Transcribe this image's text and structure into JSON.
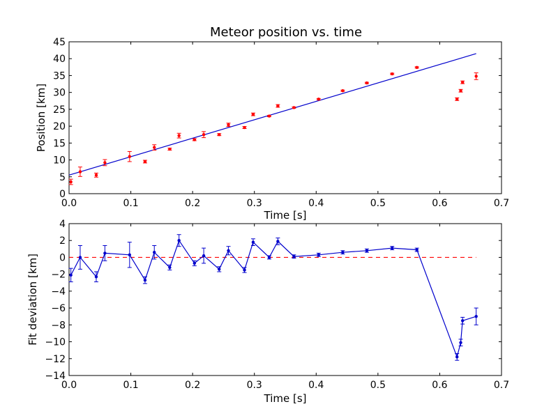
{
  "chart_data": [
    {
      "type": "scatter",
      "title": "Meteor position vs. time",
      "xlabel": "Time [s]",
      "ylabel": "Position [km]",
      "xlim": [
        0.0,
        0.7
      ],
      "ylim": [
        0,
        45
      ],
      "x_ticks": [
        0.0,
        0.1,
        0.2,
        0.3,
        0.4,
        0.5,
        0.6,
        0.7
      ],
      "y_ticks": [
        0,
        5,
        10,
        15,
        20,
        25,
        30,
        35,
        40,
        45
      ],
      "x_tick_labels": [
        "0.0",
        "0.1",
        "0.2",
        "0.3",
        "0.4",
        "0.5",
        "0.6",
        "0.7"
      ],
      "y_tick_labels": [
        "0",
        "5",
        "10",
        "15",
        "20",
        "25",
        "30",
        "35",
        "40",
        "45"
      ],
      "grid": false,
      "colors": {
        "points": "#ff0000",
        "fit": "#0000cc"
      },
      "series": [
        {
          "kind": "points-with-error-bars",
          "x": [
            0.003,
            0.018,
            0.044,
            0.058,
            0.098,
            0.123,
            0.138,
            0.163,
            0.178,
            0.203,
            0.218,
            0.243,
            0.258,
            0.284,
            0.298,
            0.324,
            0.338,
            0.364,
            0.404,
            0.443,
            0.482,
            0.523,
            0.563,
            0.628,
            0.634,
            0.637,
            0.659
          ],
          "y": [
            3.5,
            6.5,
            5.5,
            9.2,
            11.0,
            9.5,
            13.7,
            13.2,
            17.2,
            16.0,
            17.5,
            17.5,
            20.4,
            19.6,
            23.5,
            23.0,
            26.0,
            25.5,
            28.0,
            30.5,
            32.8,
            35.5,
            37.4,
            28.0,
            30.5,
            33.0,
            34.8
          ],
          "err": [
            0.8,
            1.4,
            0.6,
            0.9,
            1.5,
            0.4,
            0.8,
            0.3,
            0.7,
            0.3,
            0.9,
            0.3,
            0.5,
            0.3,
            0.4,
            0.2,
            0.4,
            0.2,
            0.2,
            0.2,
            0.2,
            0.2,
            0.2,
            0.4,
            0.4,
            0.4,
            1.0
          ]
        },
        {
          "kind": "fit-line",
          "x": [
            0.0,
            0.659
          ],
          "y": [
            5.5,
            41.5
          ]
        }
      ]
    },
    {
      "type": "line",
      "title": "",
      "xlabel": "Time [s]",
      "ylabel": "Fit deviation [km]",
      "xlim": [
        0.0,
        0.7
      ],
      "ylim": [
        -14,
        4
      ],
      "x_ticks": [
        0.0,
        0.1,
        0.2,
        0.3,
        0.4,
        0.5,
        0.6,
        0.7
      ],
      "y_ticks": [
        -14,
        -12,
        -10,
        -8,
        -6,
        -4,
        -2,
        0,
        2,
        4
      ],
      "x_tick_labels": [
        "0.0",
        "0.1",
        "0.2",
        "0.3",
        "0.4",
        "0.5",
        "0.6",
        "0.7"
      ],
      "y_tick_labels": [
        "−14",
        "−12",
        "−10",
        "−8",
        "−6",
        "−4",
        "−2",
        "0",
        "2",
        "4"
      ],
      "grid": false,
      "colors": {
        "line": "#0000cc",
        "zero": "#ff0000"
      },
      "series": [
        {
          "kind": "line-with-error-bars",
          "x": [
            0.003,
            0.018,
            0.044,
            0.058,
            0.098,
            0.123,
            0.138,
            0.163,
            0.178,
            0.203,
            0.218,
            0.243,
            0.258,
            0.284,
            0.298,
            0.324,
            0.338,
            0.364,
            0.404,
            0.443,
            0.482,
            0.523,
            0.563,
            0.628,
            0.634,
            0.637,
            0.659
          ],
          "y": [
            -2.1,
            0.0,
            -2.3,
            0.5,
            0.3,
            -2.7,
            0.6,
            -1.2,
            2.0,
            -0.7,
            0.2,
            -1.4,
            0.8,
            -1.5,
            1.8,
            0.0,
            1.9,
            0.1,
            0.3,
            0.6,
            0.8,
            1.1,
            0.9,
            -11.8,
            -10.1,
            -7.5,
            -7.0
          ],
          "err": [
            0.8,
            1.4,
            0.6,
            0.9,
            1.5,
            0.4,
            0.8,
            0.3,
            0.7,
            0.3,
            0.9,
            0.3,
            0.5,
            0.3,
            0.4,
            0.2,
            0.4,
            0.2,
            0.2,
            0.2,
            0.2,
            0.2,
            0.2,
            0.4,
            0.4,
            0.4,
            1.0
          ]
        },
        {
          "kind": "zero-reference",
          "x": [
            0.0,
            0.659
          ],
          "y": [
            0,
            0
          ]
        }
      ]
    }
  ]
}
